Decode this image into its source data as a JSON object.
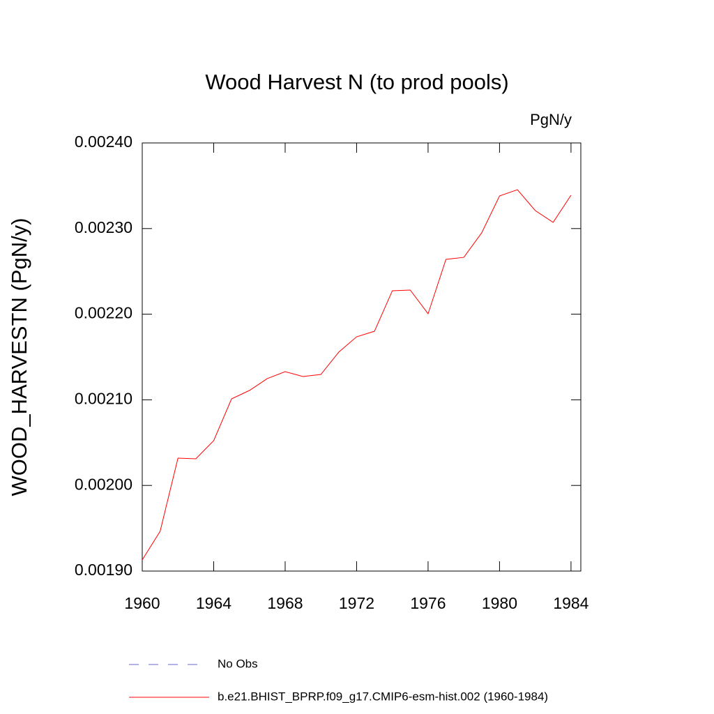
{
  "chart_data": {
    "type": "line",
    "title": "Wood Harvest N (to prod pools)",
    "units": "PgN/y",
    "ylabel": "WOOD_HARVESTN  (PgN/y)",
    "x": [
      1960,
      1961,
      1962,
      1963,
      1964,
      1965,
      1966,
      1967,
      1968,
      1969,
      1970,
      1971,
      1972,
      1973,
      1974,
      1975,
      1976,
      1977,
      1978,
      1979,
      1980,
      1981,
      1982,
      1983,
      1984
    ],
    "series": [
      {
        "name": "b.e21.BHIST_BPRP.f09_g17.CMIP6-esm-hist.002 (1960-1984)",
        "color": "#ff0000",
        "values": [
          0.001913,
          0.0019464,
          0.0020319,
          0.0020311,
          0.0020523,
          0.0021011,
          0.0021109,
          0.0021248,
          0.0021329,
          0.0021272,
          0.0021296,
          0.0021557,
          0.0021736,
          0.0021801,
          0.0022274,
          0.0022282,
          0.0022005,
          0.002264,
          0.0022664,
          0.002295,
          0.0023381,
          0.0023454,
          0.002321,
          0.0023072,
          0.0023389
        ]
      }
    ],
    "extra_legend": [
      {
        "name": "No Obs",
        "color": "#6464d2",
        "dash": true
      }
    ],
    "xlim": [
      1960,
      1984.55
    ],
    "xticks": [
      1960,
      1964,
      1968,
      1972,
      1976,
      1980,
      1984
    ],
    "ylim": [
      0.0019,
      0.0024
    ],
    "yticks": [
      {
        "value": 0.0019,
        "label": "0.00190"
      },
      {
        "value": 0.002,
        "label": "0.00200"
      },
      {
        "value": 0.0021,
        "label": "0.00210"
      },
      {
        "value": 0.0022,
        "label": "0.00220"
      },
      {
        "value": 0.0023,
        "label": "0.00230"
      },
      {
        "value": 0.0024,
        "label": "0.00240"
      }
    ]
  }
}
